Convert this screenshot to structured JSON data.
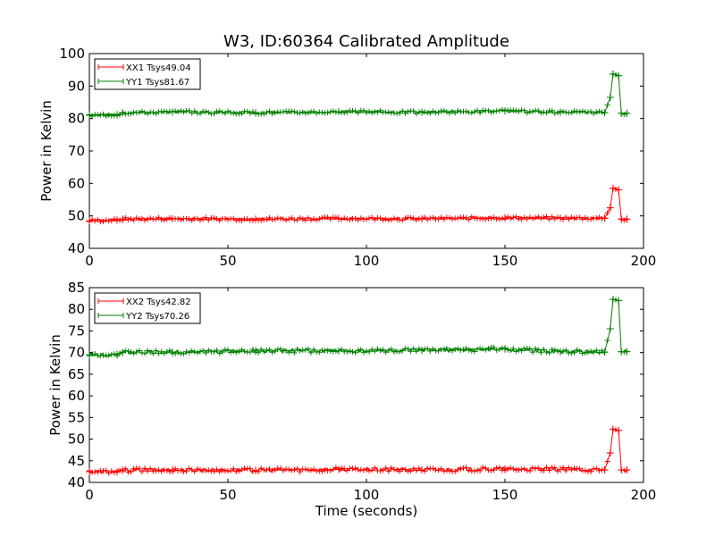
{
  "figure": {
    "title": "W3, ID:60364 Calibrated Amplitude"
  },
  "chart_data": [
    {
      "type": "line",
      "title": "W3, ID:60364 Calibrated Amplitude",
      "xlabel": "",
      "ylabel": "Power in Kelvin",
      "xlim": [
        0,
        200
      ],
      "ylim": [
        40,
        100
      ],
      "xticks": [
        "0",
        "50",
        "100",
        "150",
        "200"
      ],
      "yticks": [
        "40",
        "50",
        "60",
        "70",
        "80",
        "90",
        "100"
      ],
      "grid": false,
      "legend_position": "top-left",
      "series": [
        {
          "name": "XX1 Tsys49.04",
          "color": "#ff0000",
          "marker": "plus",
          "x": [
            0,
            10,
            12,
            30,
            60,
            90,
            120,
            150,
            170,
            186,
            188,
            189,
            191,
            192,
            194
          ],
          "y": [
            48.5,
            48.7,
            49.0,
            49.1,
            49.0,
            49.2,
            49.1,
            49.4,
            49.3,
            49.3,
            52.5,
            58.5,
            58.0,
            49.0,
            49.0
          ]
        },
        {
          "name": "YY1 Tsys81.67",
          "color": "#008000",
          "marker": "plus",
          "x": [
            0,
            10,
            12,
            30,
            60,
            90,
            120,
            150,
            170,
            186,
            188,
            189,
            191,
            192,
            194
          ],
          "y": [
            81.0,
            81.2,
            81.8,
            82.0,
            81.8,
            82.1,
            81.9,
            82.3,
            81.9,
            81.8,
            86.5,
            93.7,
            93.2,
            81.6,
            81.6
          ]
        }
      ]
    },
    {
      "type": "line",
      "title": "",
      "xlabel": "Time (seconds)",
      "ylabel": "Power in Kelvin",
      "xlim": [
        0,
        200
      ],
      "ylim": [
        40,
        85
      ],
      "xticks": [
        "0",
        "50",
        "100",
        "150",
        "200"
      ],
      "yticks": [
        "40",
        "45",
        "50",
        "55",
        "60",
        "65",
        "70",
        "75",
        "80",
        "85"
      ],
      "grid": false,
      "legend_position": "top-left",
      "series": [
        {
          "name": "XX2 Tsys42.82",
          "color": "#ff0000",
          "marker": "plus",
          "x": [
            0,
            10,
            12,
            30,
            60,
            90,
            120,
            150,
            170,
            186,
            188,
            189,
            191,
            192,
            194
          ],
          "y": [
            42.5,
            42.4,
            42.8,
            42.9,
            42.8,
            43.0,
            42.9,
            43.1,
            43.0,
            42.9,
            46.8,
            52.3,
            52.0,
            42.9,
            42.9
          ]
        },
        {
          "name": "YY2 Tsys70.26",
          "color": "#008000",
          "marker": "plus",
          "x": [
            0,
            10,
            12,
            30,
            60,
            90,
            120,
            150,
            170,
            186,
            188,
            189,
            191,
            192,
            194
          ],
          "y": [
            69.5,
            69.6,
            70.0,
            70.1,
            70.4,
            70.4,
            70.5,
            70.8,
            70.2,
            70.1,
            75.5,
            82.3,
            82.0,
            70.2,
            70.2
          ]
        }
      ]
    }
  ]
}
